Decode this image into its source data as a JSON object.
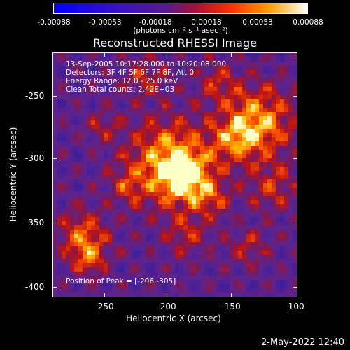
{
  "colorbar": {
    "ticks": [
      "-0.00088",
      "-0.00053",
      "-0.00018",
      "0.00018",
      "0.00053",
      "0.00088"
    ],
    "units": "(photons cm⁻² s⁻¹ asec⁻²)"
  },
  "title": "Reconstructed RHESSI Image",
  "info": {
    "time": "13-Sep-2005 10:17:28.000 to 10:20:08.000",
    "detectors": "Detectors: 3F 4F 5F 6F 7F 8F, Att 0",
    "energy": "Energy Range: 12.0 - 25.0 keV",
    "clean": "Clean    Total counts: 2.42E+03",
    "peak": "Position of Peak = [-206,-305]"
  },
  "axes": {
    "xlabel": "Heliocentric X (arcsec)",
    "ylabel": "Heliocentric Y (arcsec)",
    "xticks": [
      "-250",
      "-200",
      "-150",
      "-100"
    ],
    "yticks": [
      "-250",
      "-300",
      "-350",
      "-400"
    ],
    "xrange": [
      -290,
      -95
    ],
    "yrange": [
      -410,
      -215
    ]
  },
  "footer": {
    "timestamp": "2-May-2022 12:40"
  }
}
